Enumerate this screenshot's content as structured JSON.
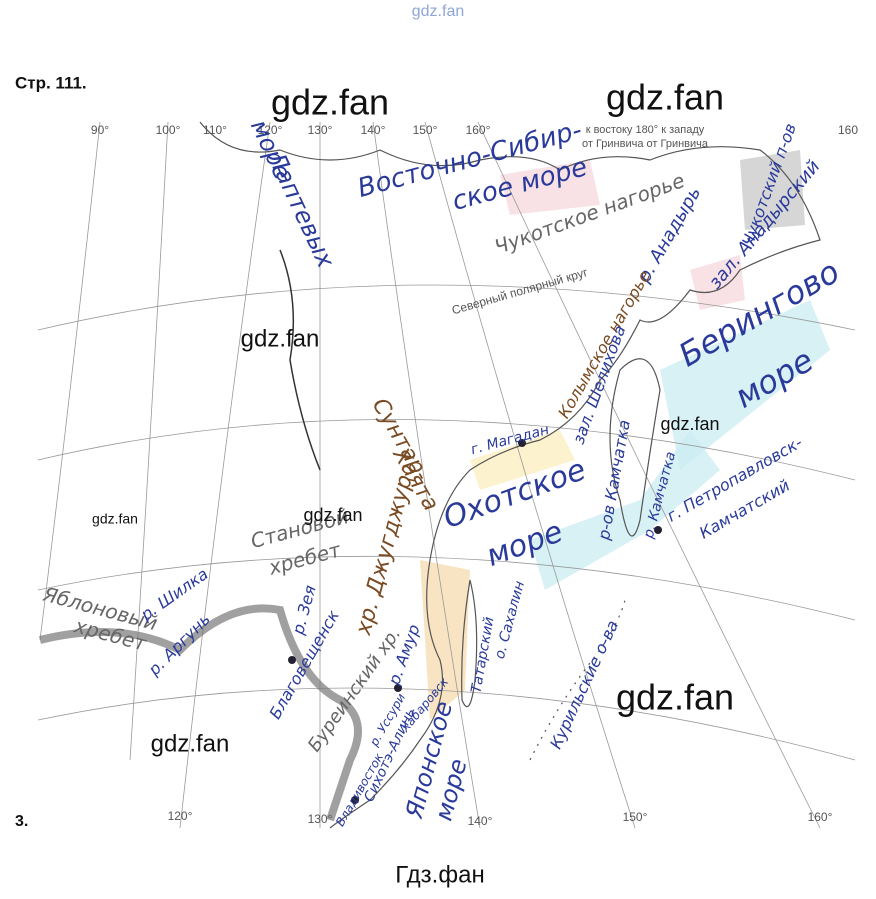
{
  "header": {
    "site": "gdz.fan",
    "page_ref": "Стр. 111."
  },
  "map": {
    "meridian_labels_top": [
      "90°",
      "100°",
      "110°",
      "120°",
      "130°",
      "140°",
      "150°",
      "160°",
      "160"
    ],
    "meridian_labels_bottom": [
      "120°",
      "130°",
      "140°",
      "150°",
      "160°"
    ],
    "notes": [
      "к востоку 180° к западу",
      "от Гринвича   от Гринвича",
      "Северный полярный круг"
    ],
    "labels": [
      "море",
      "Лаптевых",
      "Восточно-Сибир-",
      "ское море",
      "Чукотский п-ов",
      "Чукотское нагорье",
      "р. Анадырь",
      "зал. Анадырский",
      "Берингово",
      "море",
      "Колымское нагорье",
      "зал. Шелихова",
      "г. Магадан",
      "Сунтар-",
      "Хаята",
      "хр. Джугджур",
      "Охотское",
      "море",
      "р-ов Камчатка",
      "р. Камчатка",
      "г. Петропавловск-",
      "Камчатский",
      "Становой",
      "хребет",
      "Яблоновый",
      "хребет",
      "р. Шилка",
      "р. Аргунь",
      "р. Зея",
      "Благовещенск",
      "Буреинский хр.",
      "р. Амур",
      "Хабаровск",
      "Татарский",
      "о. Сахалин",
      "Курильские о-ва",
      "Японское",
      "море",
      "Сихотэ-Алинь",
      "Владивосток",
      "р. Уссури"
    ]
  },
  "watermarks": [
    "gdz.fan",
    "gdz.fan",
    "gdz.fan",
    "gdz.fan",
    "gdz.fan",
    "gdz.fan",
    "gdz.fan",
    "gdz.fan"
  ],
  "footer": {
    "number": "3.",
    "caption": "Гдз.фан"
  }
}
